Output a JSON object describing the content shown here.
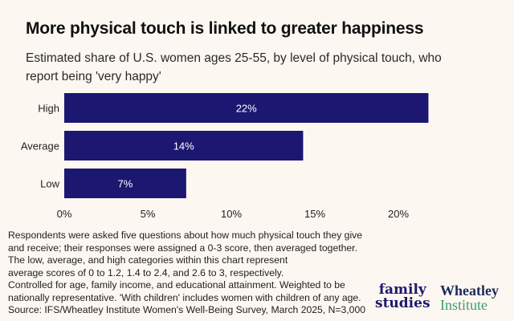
{
  "header": {
    "title": "More physical touch is linked to greater happiness",
    "subtitle": "Estimated share of U.S. women ages 25-55, by level of physical touch, who report being 'very happy'"
  },
  "chart_data": {
    "type": "bar",
    "orientation": "horizontal",
    "title": "More physical touch is linked to greater happiness",
    "subtitle": "Estimated share of U.S. women ages 25-55, by level of physical touch, who report being 'very happy'",
    "categories": [
      "High",
      "Average",
      "Low"
    ],
    "values": [
      21.8,
      14.3,
      7.3
    ],
    "data_labels": [
      "22%",
      "14%",
      "7%"
    ],
    "xlabel": "",
    "ylabel": "",
    "xlim": [
      0,
      22
    ],
    "x_ticks": [
      0,
      5,
      10,
      15,
      20
    ],
    "x_tick_labels": [
      "0%",
      "5%",
      "10%",
      "15%",
      "20%"
    ],
    "grid": false,
    "legend": "none",
    "colors": {
      "bar": "#1c1770",
      "bar_label": "#ffffff"
    }
  },
  "notes": [
    "Respondents were asked five questions about how much physical touch they give",
    "and receive; their responses were assigned a 0-3 score, then averaged together.",
    "The low, average, and high categories within this chart represent",
    "average scores of 0 to 1.2, 1.4 to 2.4, and 2.6 to 3, respectively.",
    "Controlled for age, family income, and educational attainment. Weighted to be",
    "nationally representative. 'With children' includes women with children of any age.",
    "Source: IFS/Wheatley Institute Women's Well-Being Survey, March 2025, N=3,000"
  ],
  "logos": {
    "family_studies": [
      "family",
      "studies"
    ],
    "wheatley": [
      "Wheatley",
      "Institute"
    ]
  }
}
